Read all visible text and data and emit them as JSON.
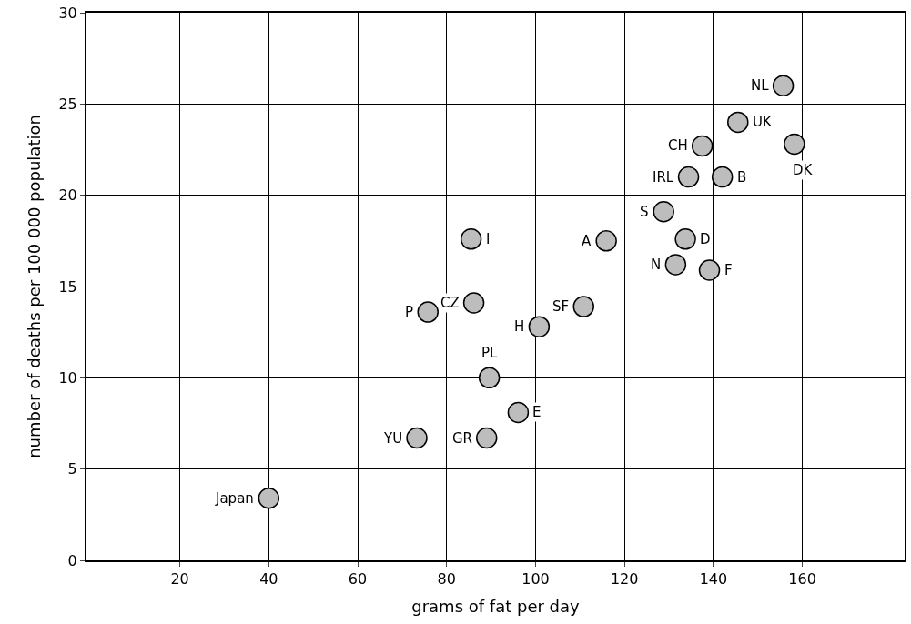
{
  "chart_data": {
    "type": "scatter",
    "xlabel": "grams of fat per day",
    "ylabel": "number of deaths per 100 000 population",
    "xlim": [
      -1,
      183
    ],
    "xticks": [
      20,
      40,
      60,
      80,
      100,
      120,
      140,
      160
    ],
    "ylim": [
      0,
      30
    ],
    "yticks": [
      0,
      5,
      10,
      15,
      20,
      25,
      30
    ],
    "grid": true,
    "marker": "circle",
    "x": [
      40,
      73.3,
      89,
      96.1,
      89.6,
      100.8,
      75.8,
      86.1,
      110.8,
      85.5,
      115.9,
      128.8,
      133.7,
      131.5,
      139.1,
      134.4,
      142,
      137.5,
      158.2,
      145.5,
      155.7
    ],
    "series": [
      {
        "color": "#bdbdbd",
        "values": [
          3.4,
          6.7,
          6.7,
          8.1,
          10,
          12.8,
          13.6,
          14.1,
          13.9,
          17.6,
          17.5,
          19.1,
          17.6,
          16.2,
          15.9,
          21,
          21,
          22.7,
          22.8,
          24,
          26
        ]
      }
    ],
    "annotations": [
      {
        "text": "Japan",
        "x": 40,
        "y": 3.4
      },
      {
        "text": "YU",
        "x": 73.3,
        "y": 6.7
      },
      {
        "text": "GR",
        "x": 89,
        "y": 6.7
      },
      {
        "text": "E",
        "x": 96.1,
        "y": 8.1
      },
      {
        "text": "PL",
        "x": 89.6,
        "y": 10
      },
      {
        "text": "H",
        "x": 100.8,
        "y": 12.8
      },
      {
        "text": "P",
        "x": 75.8,
        "y": 13.6
      },
      {
        "text": "CZ",
        "x": 86.1,
        "y": 14.1
      },
      {
        "text": "SF",
        "x": 110.8,
        "y": 13.9
      },
      {
        "text": "I",
        "x": 85.5,
        "y": 17.6
      },
      {
        "text": "A",
        "x": 115.9,
        "y": 17.5
      },
      {
        "text": "S",
        "x": 128.8,
        "y": 19.1
      },
      {
        "text": "D",
        "x": 133.7,
        "y": 17.6
      },
      {
        "text": "N",
        "x": 131.5,
        "y": 16.2
      },
      {
        "text": "F",
        "x": 139.1,
        "y": 15.9
      },
      {
        "text": "IRL",
        "x": 134.4,
        "y": 21
      },
      {
        "text": "B",
        "x": 142,
        "y": 21
      },
      {
        "text": "CH",
        "x": 137.5,
        "y": 22.7
      },
      {
        "text": "DK",
        "x": 158.2,
        "y": 22.8
      },
      {
        "text": "UK",
        "x": 145.5,
        "y": 24
      },
      {
        "text": "NL",
        "x": 155.7,
        "y": 26
      }
    ]
  }
}
